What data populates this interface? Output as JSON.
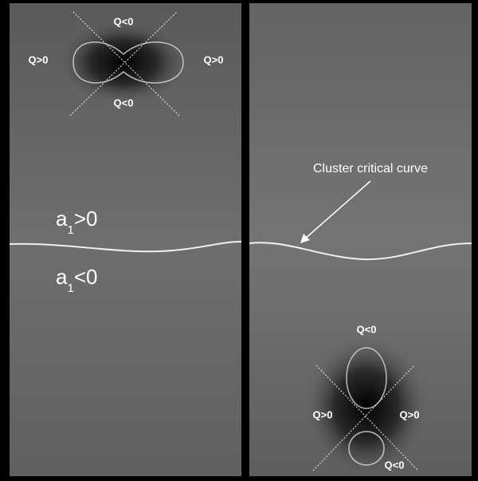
{
  "left_panel": {
    "quadrant_labels": [
      "Q<0",
      "Q>0",
      "Q>0",
      "Q<0"
    ],
    "region_labels": [
      {
        "symbol": "a",
        "subscript": "1",
        "relation": ">0"
      },
      {
        "symbol": "a",
        "subscript": "1",
        "relation": "<0"
      }
    ]
  },
  "right_panel": {
    "quadrant_labels": [
      "Q<0",
      "Q>0",
      "Q>0",
      "Q<0"
    ],
    "annotation": "Cluster critical curve"
  }
}
